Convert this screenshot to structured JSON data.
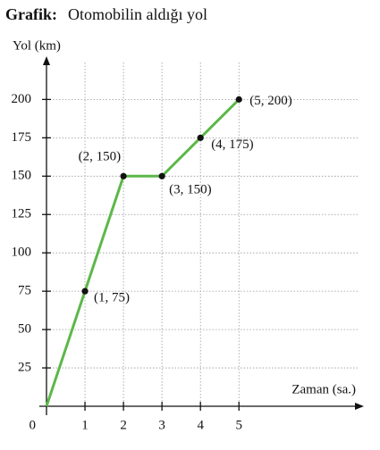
{
  "chart_data": {
    "type": "line",
    "title_label": "Grafik:",
    "title": "Otomobilin aldığı yol",
    "y_label": "Yol (km)",
    "x_label": "Zaman (sa.)",
    "x": [
      0,
      1,
      2,
      3,
      4,
      5
    ],
    "series": [
      {
        "color": "#5cb849",
        "values": [
          0,
          75,
          150,
          150,
          175,
          200
        ],
        "value_labels": [
          null,
          "(1, 75)",
          "(2, 150)",
          "(3, 150)",
          "(4, 175)",
          "(5, 200)"
        ]
      }
    ],
    "xlim": [
      0,
      8.2
    ],
    "ylim": [
      0,
      227
    ],
    "xticks": [
      1,
      2,
      3,
      4,
      5
    ],
    "yticks": [
      0,
      25,
      50,
      75,
      100,
      125,
      150,
      175,
      200
    ],
    "grid": true
  }
}
